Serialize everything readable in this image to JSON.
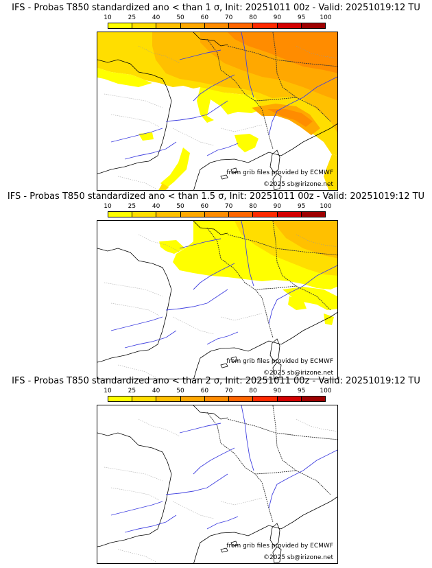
{
  "colorbar": {
    "ticks": [
      "10",
      "25",
      "40",
      "50",
      "60",
      "70",
      "80",
      "90",
      "95",
      "100"
    ],
    "colors": [
      "#ffff00",
      "#ffde00",
      "#ffc000",
      "#ffa800",
      "#ff8c00",
      "#ff6600",
      "#ff2a00",
      "#d40000",
      "#9e0000"
    ]
  },
  "panels": [
    {
      "title": "IFS - Probas T850  standardized ano < than 1 σ, Init: 20251011 00z - Valid: 20251019:12 TU",
      "source": "from grib files provided by ECMWF",
      "copyright": "©2025 sb@irizone.net",
      "intensity": "high"
    },
    {
      "title": "IFS - Probas T850  standardized ano < than 1.5 σ, Init: 20251011 00z - Valid: 20251019:12 TU",
      "source": "from grib files provided by ECMWF",
      "copyright": "©2025 sb@irizone.net",
      "intensity": "medium"
    },
    {
      "title": "IFS - Probas T850  standardized ano < than 2 σ, Init: 20251011 00z - Valid: 20251019:12 TU",
      "source": "from grib files provided by ECMWF",
      "copyright": "©2025 sb@irizone.net",
      "intensity": "none"
    }
  ]
}
